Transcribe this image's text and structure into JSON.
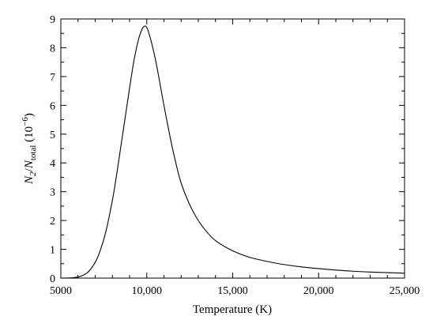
{
  "chart_data": {
    "type": "line",
    "xlabel": "Temperature (K)",
    "ylabel_parts": {
      "n2": "N",
      "n2_sub": "2",
      "slash": "/",
      "ntotal": "N",
      "ntotal_sub": "total",
      "scale_open": " (10",
      "scale_exp": "−6",
      "scale_close": ")"
    },
    "xlim": [
      5000,
      25000
    ],
    "ylim": [
      0,
      9
    ],
    "x_ticks": [
      5000,
      10000,
      15000,
      20000,
      25000
    ],
    "x_tick_labels": [
      "5000",
      "10,000",
      "15,000",
      "20,000",
      "25,000"
    ],
    "y_ticks": [
      0,
      1,
      2,
      3,
      4,
      5,
      6,
      7,
      8,
      9
    ],
    "y_tick_labels": [
      "0",
      "1",
      "2",
      "3",
      "4",
      "5",
      "6",
      "7",
      "8",
      "9"
    ],
    "grid": false,
    "series": [
      {
        "color": "#000000",
        "x": [
          5000,
          5500,
          6000,
          6500,
          7000,
          7500,
          8000,
          8500,
          9000,
          9300,
          9600,
          9800,
          9900,
          10000,
          10200,
          10500,
          11000,
          11500,
          12000,
          12500,
          13000,
          13500,
          14000,
          15000,
          16000,
          17000,
          18000,
          19000,
          20000,
          21000,
          22000,
          23000,
          24000,
          25000
        ],
        "y": [
          0.0,
          0.005,
          0.04,
          0.17,
          0.55,
          1.35,
          2.7,
          4.6,
          6.6,
          7.7,
          8.45,
          8.72,
          8.76,
          8.7,
          8.35,
          7.6,
          6.0,
          4.5,
          3.3,
          2.55,
          2.0,
          1.6,
          1.3,
          0.95,
          0.72,
          0.58,
          0.47,
          0.39,
          0.33,
          0.28,
          0.24,
          0.21,
          0.19,
          0.17
        ]
      }
    ]
  }
}
